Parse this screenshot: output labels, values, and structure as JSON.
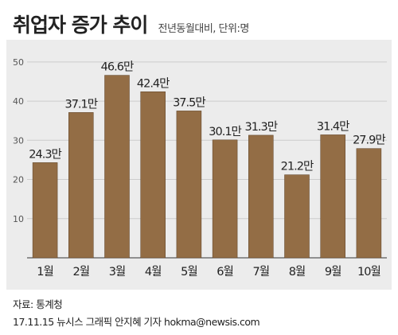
{
  "header": {
    "title": "취업자 증가 추이",
    "subtitle": "전년동월대비, 단위:명"
  },
  "footer": {
    "source_label": "자료:",
    "source": "통계청",
    "credit": "17.11.15 뉴시스 그래픽 안지혜 기자 hokma@newsis.com"
  },
  "colors": {
    "bar": "#936d45",
    "bar_stroke": "#5a3f25",
    "grid": "#cccccc",
    "panel": "#ececec"
  },
  "chart_data": {
    "type": "bar",
    "title": "취업자 증가 추이",
    "subtitle": "전년동월대비, 단위:명",
    "categories": [
      "1월",
      "2월",
      "3월",
      "4월",
      "5월",
      "6월",
      "7월",
      "8월",
      "9월",
      "10월"
    ],
    "values": [
      24.3,
      37.1,
      46.6,
      42.4,
      37.5,
      30.1,
      31.3,
      21.2,
      31.4,
      27.9
    ],
    "labels": [
      "24.3만",
      "37.1만",
      "46.6만",
      "42.4만",
      "37.5만",
      "30.1만",
      "31.3만",
      "21.2만",
      "31.4만",
      "27.9만"
    ],
    "y_ticks": [
      10,
      20,
      30,
      40,
      50
    ],
    "ylim": [
      0,
      55
    ],
    "grid": true,
    "legend": "none"
  }
}
